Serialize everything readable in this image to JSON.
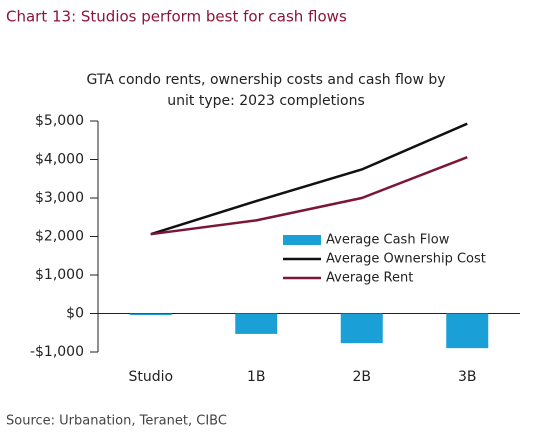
{
  "header": "Chart 13: Studios perform best for cash flows",
  "chart_data": {
    "type": "bar_line",
    "title": [
      "GTA condo rents, ownership costs and cash flow by",
      "unit type: 2023 completions"
    ],
    "categories": [
      "Studio",
      "1B",
      "2B",
      "3B"
    ],
    "series": [
      {
        "name": "Average Cash Flow",
        "type": "bar",
        "color": "#1a9fd6",
        "values": [
          -20,
          -530,
          -770,
          -900
        ]
      },
      {
        "name": "Average Ownership Cost",
        "type": "line",
        "color": "#111111",
        "values": [
          2060,
          2920,
          3740,
          4930
        ]
      },
      {
        "name": "Average Rent",
        "type": "line",
        "color": "#7b1734",
        "values": [
          2060,
          2420,
          3000,
          4060
        ]
      }
    ],
    "ylim": [
      -1000,
      5000
    ],
    "yticks": [
      {
        "value": -1000,
        "label": "-$1,000"
      },
      {
        "value": 0,
        "label": "$0"
      },
      {
        "value": 1000,
        "label": "$1,000"
      },
      {
        "value": 2000,
        "label": "$2,000"
      },
      {
        "value": 3000,
        "label": "$3,000"
      },
      {
        "value": 4000,
        "label": "$4,000"
      },
      {
        "value": 5000,
        "label": "$5,000"
      }
    ],
    "legend": "center-right"
  },
  "source": "Source: Urbanation, Teranet, CIBC"
}
